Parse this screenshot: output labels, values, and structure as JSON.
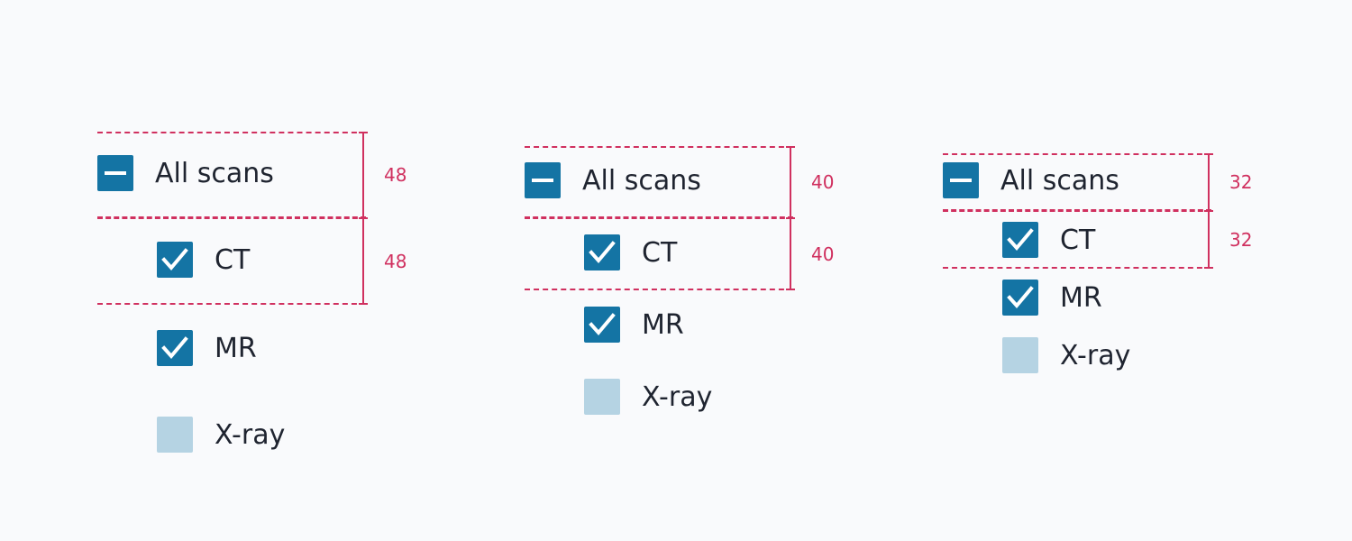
{
  "colors": {
    "checkbox_checked": "#1474a4",
    "checkbox_unchecked": "#b5d3e3",
    "spec_line": "#d0305f",
    "text": "#1f2430",
    "background": "#f9fafc"
  },
  "groups": [
    {
      "parent": {
        "label": "All scans",
        "state": "indeterminate",
        "icon": "minus-icon"
      },
      "children": [
        {
          "label": "CT",
          "checked": true,
          "icon": "check-icon"
        },
        {
          "label": "MR",
          "checked": true,
          "icon": "check-icon"
        },
        {
          "label": "X-ray",
          "checked": false
        }
      ],
      "measurements": [
        "48",
        "48"
      ]
    },
    {
      "parent": {
        "label": "All scans",
        "state": "indeterminate",
        "icon": "minus-icon"
      },
      "children": [
        {
          "label": "CT",
          "checked": true,
          "icon": "check-icon"
        },
        {
          "label": "MR",
          "checked": true,
          "icon": "check-icon"
        },
        {
          "label": "X-ray",
          "checked": false
        }
      ],
      "measurements": [
        "40",
        "40"
      ]
    },
    {
      "parent": {
        "label": "All scans",
        "state": "indeterminate",
        "icon": "minus-icon"
      },
      "children": [
        {
          "label": "CT",
          "checked": true,
          "icon": "check-icon"
        },
        {
          "label": "MR",
          "checked": true,
          "icon": "check-icon"
        },
        {
          "label": "X-ray",
          "checked": false
        }
      ],
      "measurements": [
        "32",
        "32"
      ]
    }
  ]
}
